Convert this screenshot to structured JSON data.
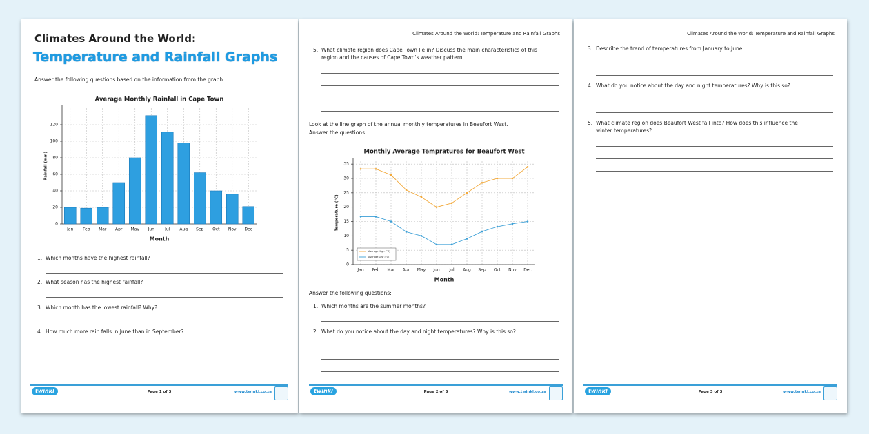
{
  "pages": [
    {
      "title": "Climates Around the World:",
      "subtitle": "Temperature and Rainfall Graphs",
      "instruction": "Answer the following questions based on the information from the graph.",
      "questions": [
        {
          "number": "1.",
          "text": "Which months have the highest rainfall?"
        },
        {
          "number": "2.",
          "text": "What season has the highest rainfall?"
        },
        {
          "number": "3.",
          "text": "Which month has the lowest rainfall? Why?"
        },
        {
          "number": "4.",
          "text": "How much more rain falls in June than in September?"
        }
      ],
      "footer": {
        "logo": "twinkl",
        "page": "Page 1 of 3",
        "site": "www.twinkl.co.za"
      }
    },
    {
      "header": "Climates Around the World: Temperature and Rainfall Graphs",
      "questions": [
        {
          "number": "5.",
          "text": "What climate region does Cape Town lie in? Discuss the main characteristics of this region and the causes of Cape Town's weather pattern."
        }
      ],
      "prompt": [
        "Look at the line graph of the annual monthly temperatures in Beaufort West.",
        "Answer the questions."
      ],
      "subheading": "Answer the following questions:",
      "questions_2": [
        {
          "number": "1.",
          "text": "Which months are the summer months?"
        },
        {
          "number": "2.",
          "text": "What do you notice about the day and night temperatures? Why is this so?"
        }
      ],
      "footer": {
        "logo": "twinkl",
        "page": "Page 2 of 3",
        "site": "www.twinkl.co.za"
      }
    },
    {
      "header": "Climates Around the World: Temperature and Rainfall Graphs",
      "questions": [
        {
          "number": "3.",
          "text": "Describe the trend of temperatures from January to June."
        },
        {
          "number": "4.",
          "text": "What do you notice about the day and night temperatures? Why is this so?"
        },
        {
          "number": "5.",
          "text": "What climate region does Beaufort West fall into? How does this influence the winter temperatures?"
        }
      ],
      "footer": {
        "logo": "twinkl",
        "page": "Page 3 of 3",
        "site": "www.twinkl.co.za"
      }
    }
  ],
  "chart_data": [
    {
      "type": "bar",
      "title": "Average Monthly Rainfall in Cape Town",
      "x_label": "Month",
      "y_label": "Rainfall (mm)",
      "categories": [
        "Jan",
        "Feb",
        "Mar",
        "Apr",
        "May",
        "Jun",
        "Jul",
        "Aug",
        "Sep",
        "Oct",
        "Nov",
        "Dec"
      ],
      "values": [
        20,
        19,
        20,
        50,
        80,
        131,
        111,
        98,
        62,
        40,
        36,
        21
      ],
      "color": "#2e9fe0",
      "ylim": [
        0,
        140
      ],
      "yticks": [
        0,
        20,
        40,
        60,
        80,
        100,
        120
      ],
      "grid": true
    },
    {
      "type": "line",
      "title": "Monthly Average Tempratures for Beaufort West",
      "x_label": "Month",
      "y_label": "Temperature (°C)",
      "categories": [
        "Jan",
        "Feb",
        "Mar",
        "Apr",
        "May",
        "Jun",
        "Jul",
        "Aug",
        "Sep",
        "Oct",
        "Nov",
        "Dec"
      ],
      "series": [
        {
          "name": "Average High (°C)",
          "color": "#f2a93b",
          "values": [
            33.3,
            33.3,
            31.2,
            26,
            23.5,
            20,
            21.4,
            25,
            28.5,
            30,
            30,
            34
          ]
        },
        {
          "name": "Average Low (°C)",
          "color": "#3b9fd6",
          "values": [
            16.7,
            16.7,
            15,
            11.4,
            10,
            7,
            7,
            9,
            11.5,
            13.2,
            14.2,
            15
          ]
        }
      ],
      "ylim": [
        0,
        36
      ],
      "yticks": [
        0,
        5,
        10,
        15,
        20,
        25,
        30,
        35
      ],
      "grid": true,
      "legend": "lower left"
    }
  ]
}
